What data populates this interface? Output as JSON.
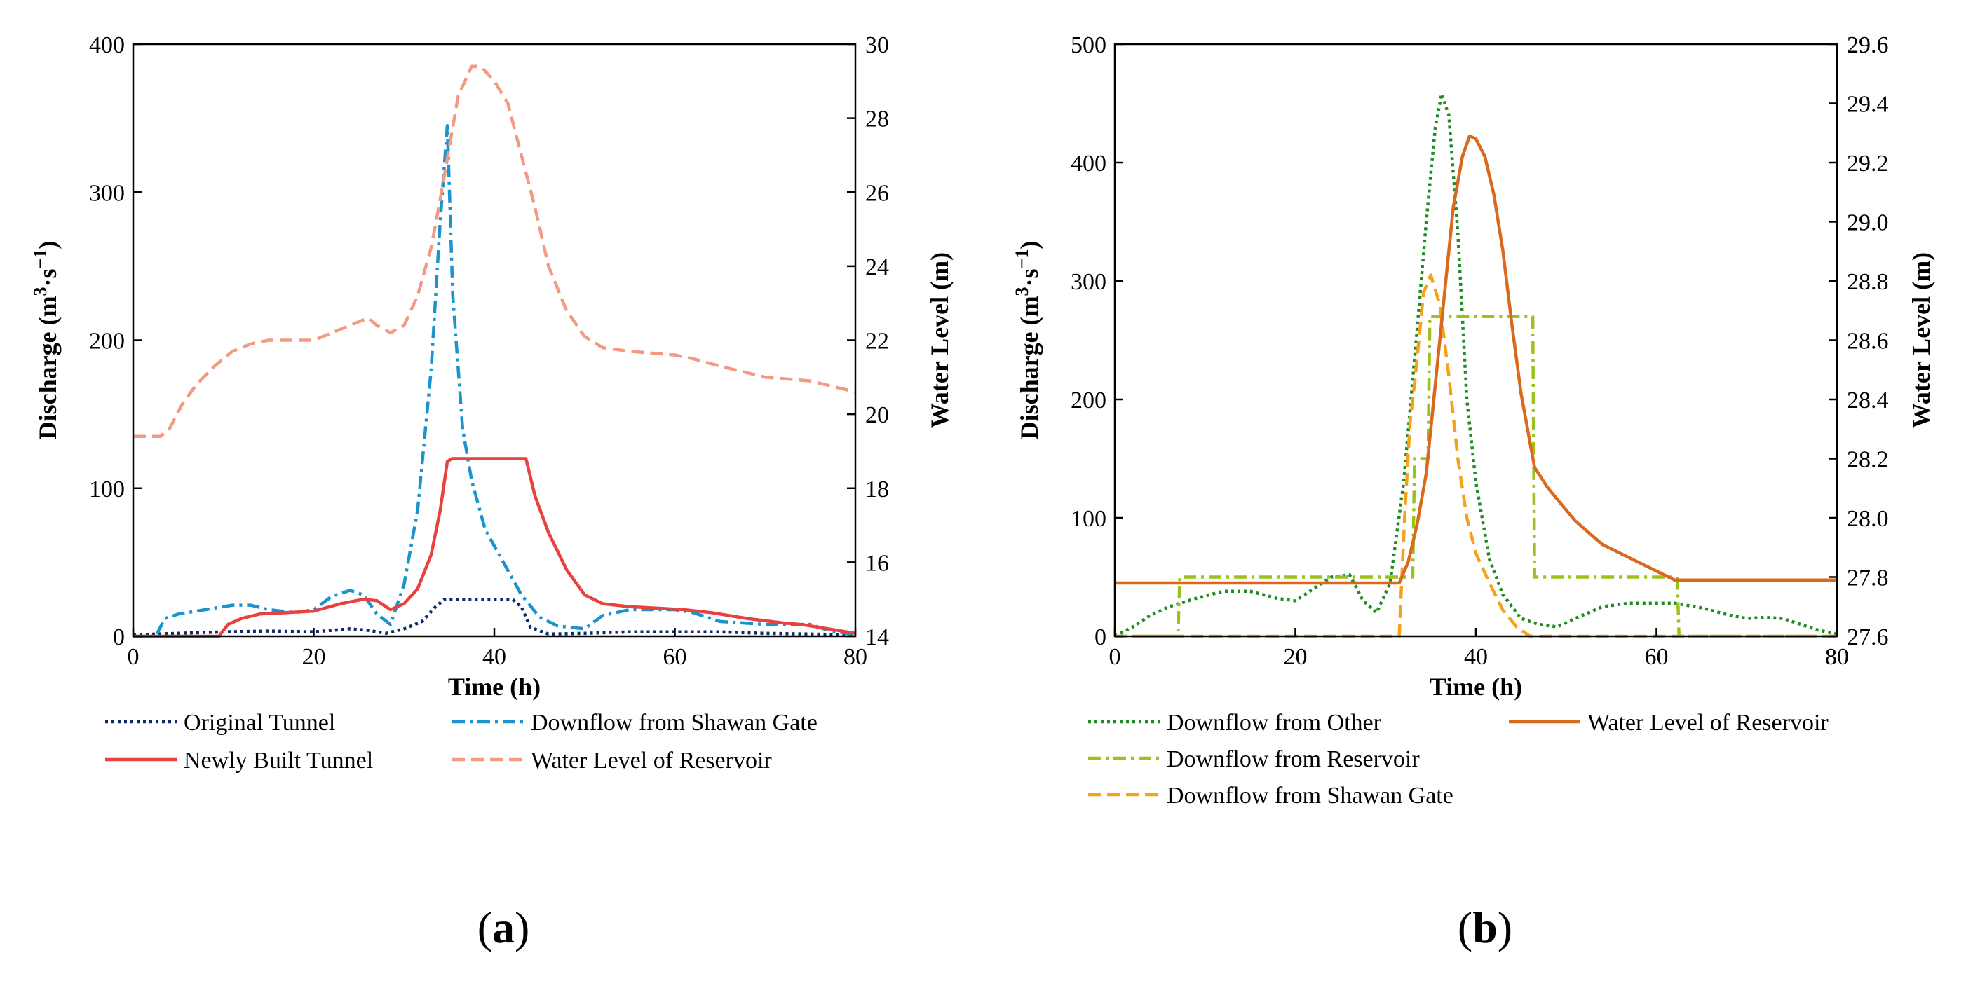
{
  "chart_data": [
    {
      "type": "line",
      "panel_label": "(a)",
      "panel_letter": "a",
      "xlabel": "Time (h)",
      "ylabel_left": "Discharge (m³·s⁻¹)",
      "ylabel_left_parts": {
        "base": "Discharge (m",
        "sup1": "3",
        "mid": "·s",
        "sup2": "−1",
        "end": ")"
      },
      "ylabel_right": "Water Level (m)",
      "xlim": [
        0,
        80
      ],
      "ylim_left": [
        0,
        400
      ],
      "ylim_right": [
        14,
        30
      ],
      "xticks": [
        "0",
        "20",
        "40",
        "60",
        "80"
      ],
      "yticks_left": [
        "0",
        "100",
        "200",
        "300",
        "400"
      ],
      "yticks_right": [
        "14",
        "16",
        "18",
        "20",
        "22",
        "24",
        "26",
        "28",
        "30"
      ],
      "legend": {
        "placement": "below",
        "columns": 2
      },
      "series": [
        {
          "name": "Original Tunnel",
          "axis": "left",
          "color": "#0b2a6b",
          "dash": "dotted",
          "x": [
            0,
            5,
            10,
            15,
            20,
            24,
            26,
            28,
            30,
            32,
            33.5,
            34.5,
            42,
            43,
            44,
            46,
            50,
            55,
            60,
            65,
            70,
            75,
            80
          ],
          "y": [
            1,
            2,
            3,
            3.5,
            3,
            5,
            4,
            2,
            5,
            10,
            20,
            25,
            25,
            20,
            6,
            1.5,
            2,
            3,
            3,
            3,
            2,
            1.5,
            1
          ]
        },
        {
          "name": "Downflow from Shawan Gate",
          "axis": "left",
          "color": "#1a93cf",
          "dash": "dashdot",
          "x": [
            0,
            2.5,
            3.5,
            5,
            8,
            11,
            13,
            15,
            18,
            20,
            22,
            24,
            25.5,
            27,
            28.5,
            30,
            31.5,
            33,
            34,
            34.8,
            35.4,
            36.5,
            37.5,
            39,
            41,
            43,
            45,
            47,
            50,
            52,
            55,
            60,
            62,
            65,
            70,
            75,
            77,
            80
          ],
          "y": [
            0,
            0,
            12,
            15,
            18,
            21,
            21,
            18,
            16,
            18,
            27,
            31,
            28,
            15,
            8,
            35,
            85,
            180,
            280,
            345,
            230,
            140,
            105,
            72,
            50,
            28,
            13,
            7,
            5,
            14,
            18,
            18,
            16,
            10,
            8,
            8,
            4,
            1
          ]
        },
        {
          "name": "Newly Built Tunnel",
          "axis": "left",
          "color": "#e8413e",
          "dash": "solid",
          "x": [
            0,
            5,
            9.5,
            10.5,
            12,
            14,
            17,
            20,
            23,
            25.5,
            27,
            28.5,
            30,
            31.5,
            33,
            34,
            34.8,
            35.3,
            43.5,
            44.5,
            46,
            48,
            50,
            52,
            55,
            58,
            61,
            64,
            68,
            72,
            74,
            76,
            78,
            80
          ],
          "y": [
            0,
            0,
            0,
            8,
            12,
            15,
            16,
            17,
            22,
            25,
            24,
            18,
            22,
            32,
            55,
            85,
            118,
            120,
            120,
            95,
            70,
            45,
            28,
            22,
            20,
            19,
            18,
            16,
            12,
            9,
            8,
            6,
            4,
            2
          ]
        },
        {
          "name": "Water Level of Reservoir",
          "axis": "right",
          "color": "#f29a84",
          "dash": "dashed",
          "x": [
            0,
            3,
            4,
            5.5,
            7,
            9,
            11,
            13,
            15,
            17,
            20,
            22,
            24,
            26,
            27,
            28.5,
            30,
            31.5,
            33,
            34,
            35,
            36,
            37.5,
            38.5,
            40,
            41.5,
            43,
            44.5,
            46,
            48,
            50,
            52,
            55,
            60,
            62,
            65,
            70,
            75,
            80
          ],
          "y": [
            19.4,
            19.4,
            19.6,
            20.3,
            20.8,
            21.3,
            21.7,
            21.9,
            22.0,
            22.0,
            22.0,
            22.2,
            22.4,
            22.6,
            22.4,
            22.2,
            22.4,
            23.2,
            24.5,
            25.8,
            27.2,
            28.6,
            29.4,
            29.4,
            29.0,
            28.4,
            27.0,
            25.6,
            24.0,
            22.8,
            22.1,
            21.8,
            21.7,
            21.6,
            21.5,
            21.3,
            21.0,
            20.9,
            20.6
          ]
        }
      ]
    },
    {
      "type": "line",
      "panel_label": "(b)",
      "panel_letter": "b",
      "xlabel": "Time (h)",
      "ylabel_left": "Discharge (m³·s⁻¹)",
      "ylabel_left_parts": {
        "base": "Discharge (m",
        "sup1": "3",
        "mid": "·s",
        "sup2": "−1",
        "end": ")"
      },
      "ylabel_right": "Water Level (m)",
      "xlim": [
        0,
        80
      ],
      "ylim_left": [
        0,
        500
      ],
      "ylim_right": [
        27.6,
        29.6
      ],
      "xticks": [
        "0",
        "20",
        "40",
        "60",
        "80"
      ],
      "yticks_left": [
        "0",
        "100",
        "200",
        "300",
        "400",
        "500"
      ],
      "yticks_right": [
        "27.6",
        "27.8",
        "28.0",
        "28.2",
        "28.4",
        "28.6",
        "28.8",
        "29.0",
        "29.2",
        "29.4",
        "29.6"
      ],
      "legend": {
        "placement": "below",
        "columns": 2
      },
      "series": [
        {
          "name": "Downflow from Other",
          "axis": "left",
          "color": "#1e8c22",
          "dash": "dotted",
          "x": [
            0,
            2,
            4,
            6,
            9,
            12,
            15,
            18,
            20,
            22,
            24,
            26,
            27.5,
            29,
            30.5,
            32,
            33.5,
            34.5,
            35.5,
            36.2,
            37,
            38,
            39,
            40,
            41.5,
            43,
            45,
            47,
            49,
            51,
            54,
            57,
            60,
            62,
            65,
            68,
            70,
            72,
            74,
            76,
            78,
            80
          ],
          "y": [
            0,
            8,
            18,
            25,
            32,
            38,
            38,
            32,
            30,
            40,
            50,
            52,
            30,
            20,
            45,
            130,
            260,
            350,
            430,
            458,
            440,
            340,
            200,
            130,
            65,
            35,
            15,
            10,
            8,
            15,
            25,
            28,
            28,
            28,
            24,
            18,
            15,
            16,
            15,
            10,
            5,
            2
          ]
        },
        {
          "name": "Downflow from Reservoir",
          "axis": "left",
          "color": "#9ac21b",
          "dash": "dashdot",
          "x": [
            0,
            7,
            7.2,
            25,
            28.2,
            28.5,
            30,
            33,
            33.2,
            34.7,
            34.9,
            46.3,
            46.5,
            62.3,
            62.5,
            80
          ],
          "y": [
            0,
            0,
            50,
            50,
            50,
            50,
            50,
            50,
            150,
            150,
            270,
            270,
            50,
            50,
            0,
            0
          ]
        },
        {
          "name": "Downflow from Shawan Gate",
          "axis": "left",
          "color": "#f5a21a",
          "dash": "dashed",
          "x": [
            0,
            31.5,
            32.1,
            32.7,
            33.3,
            34.2,
            35,
            36,
            37,
            38,
            39,
            40,
            41.5,
            43,
            44.5,
            46,
            80
          ],
          "y": [
            0,
            0,
            100,
            180,
            220,
            290,
            305,
            280,
            220,
            150,
            100,
            70,
            45,
            22,
            8,
            0,
            0
          ]
        },
        {
          "name": "Water Level of Reservoir",
          "axis": "right",
          "color": "#d9691c",
          "dash": "solid",
          "x": [
            0,
            31.5,
            32.5,
            33.5,
            34.5,
            35.5,
            36.5,
            37.5,
            38.5,
            39.3,
            40,
            41,
            42,
            43,
            44,
            45,
            46.5,
            48,
            51,
            54,
            58,
            62,
            80
          ],
          "y": [
            27.78,
            27.78,
            27.85,
            27.98,
            28.15,
            28.45,
            28.75,
            29.05,
            29.22,
            29.29,
            29.28,
            29.22,
            29.09,
            28.9,
            28.65,
            28.42,
            28.17,
            28.1,
            27.99,
            27.91,
            27.85,
            27.79,
            27.79
          ]
        }
      ]
    }
  ]
}
